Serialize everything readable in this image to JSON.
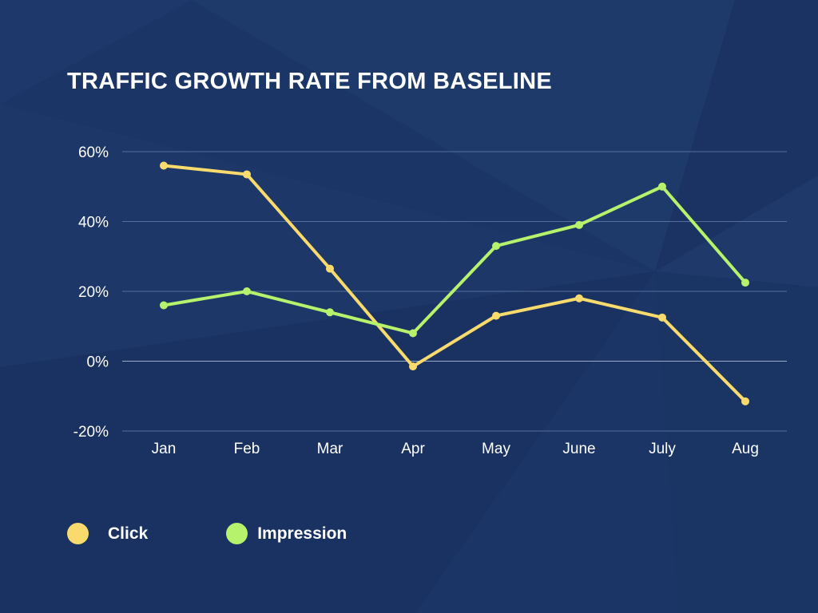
{
  "colors": {
    "background": "#1b3566",
    "click": "#f9db6d",
    "impression": "#b6f26b",
    "grid": "#6f86b0",
    "text": "#ffffff"
  },
  "chart_data": {
    "type": "line",
    "title": "TRAFFIC GROWTH RATE FROM BASELINE",
    "xlabel": "",
    "ylabel": "",
    "categories": [
      "Jan",
      "Feb",
      "Mar",
      "Apr",
      "May",
      "June",
      "July",
      "Aug"
    ],
    "ylim": [
      -20,
      60
    ],
    "yticks": [
      -20,
      0,
      20,
      40,
      60
    ],
    "ytick_labels": [
      "-20%",
      "0%",
      "20%",
      "40%",
      "60%"
    ],
    "grid": true,
    "legend_position": "bottom-left",
    "series": [
      {
        "name": "Click",
        "color": "#f9db6d",
        "values": [
          56,
          53.5,
          26.5,
          -1.5,
          13,
          18,
          12.5,
          -11.5
        ]
      },
      {
        "name": "Impression",
        "color": "#b6f26b",
        "values": [
          16,
          20,
          14,
          8,
          33,
          39,
          50,
          22.5
        ]
      }
    ]
  }
}
